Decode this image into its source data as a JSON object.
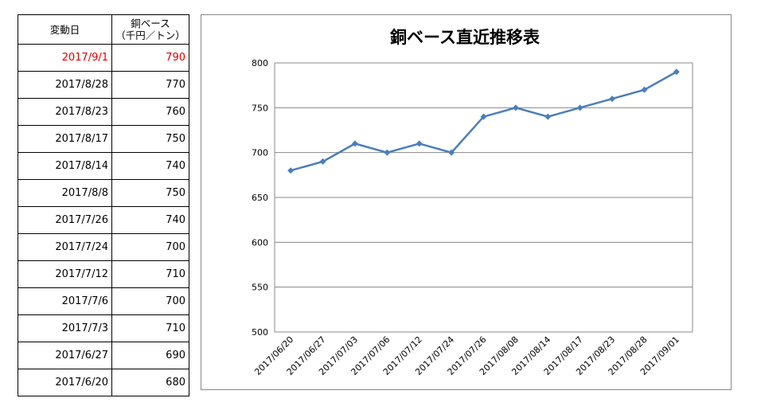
{
  "table": {
    "header": {
      "date": "変動日",
      "price_line1": "銅ベース",
      "price_line2": "（千円／トン）"
    },
    "rows": [
      {
        "date": "2017/9/1",
        "value": "790"
      },
      {
        "date": "2017/8/28",
        "value": "770"
      },
      {
        "date": "2017/8/23",
        "value": "760"
      },
      {
        "date": "2017/8/17",
        "value": "750"
      },
      {
        "date": "2017/8/14",
        "value": "740"
      },
      {
        "date": "2017/8/8",
        "value": "750"
      },
      {
        "date": "2017/7/26",
        "value": "740"
      },
      {
        "date": "2017/7/24",
        "value": "700"
      },
      {
        "date": "2017/7/12",
        "value": "710"
      },
      {
        "date": "2017/7/6",
        "value": "700"
      },
      {
        "date": "2017/7/3",
        "value": "710"
      },
      {
        "date": "2017/6/27",
        "value": "690"
      },
      {
        "date": "2017/6/20",
        "value": "680"
      }
    ],
    "latest_color": "#e00000"
  },
  "chart_data": {
    "type": "line",
    "title": "銅ベース直近推移表",
    "xlabel": "",
    "ylabel": "",
    "categories": [
      "2017/06/20",
      "2017/06/27",
      "2017/07/03",
      "2017/07/06",
      "2017/07/12",
      "2017/07/24",
      "2017/07/26",
      "2017/08/08",
      "2017/08/14",
      "2017/08/17",
      "2017/08/23",
      "2017/08/28",
      "2017/09/01"
    ],
    "series": [
      {
        "values": [
          680,
          690,
          710,
          700,
          710,
          700,
          740,
          750,
          740,
          750,
          760,
          770,
          790
        ],
        "color": "#4a7ebb",
        "marker": "diamond"
      }
    ],
    "ylim": [
      500,
      800
    ],
    "yticks": [
      500,
      550,
      600,
      650,
      700,
      750,
      800
    ],
    "grid": "horizontal",
    "legend": "none"
  }
}
